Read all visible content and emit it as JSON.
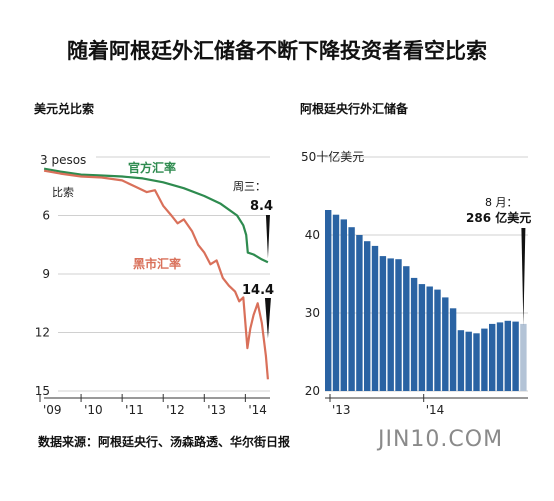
{
  "title": "随着阿根廷外汇储备不断下降投资者看空比索",
  "source": "数据来源：阿根廷央行、汤森路透、华尔街日报",
  "watermark": "JIN10.COM",
  "colors": {
    "official": "#2e8b4f",
    "black": "#d9705a",
    "bar": "#2a63a3",
    "bar_last": "#b3c3d6",
    "grid": "#d0d0d0",
    "text": "#222222"
  },
  "chart_data": [
    {
      "type": "line",
      "title": "美元兑比索",
      "y_unit_label": "3 pesos",
      "y_unit_sub": "比索",
      "ylim": [
        3,
        15
      ],
      "y_inverted": true,
      "y_ticks": [
        6,
        9,
        12,
        15
      ],
      "x_ticks": [
        "'09",
        "'10",
        "'11",
        "'12",
        "'13",
        "'14"
      ],
      "xlim": [
        2009.0,
        2014.6
      ],
      "grid": true,
      "series": [
        {
          "name": "官方汇率",
          "x": [
            2009.1,
            2009.5,
            2010.0,
            2010.5,
            2011.0,
            2011.5,
            2012.0,
            2012.5,
            2013.0,
            2013.4,
            2013.8,
            2013.95,
            2014.02,
            2014.06,
            2014.2,
            2014.4,
            2014.55
          ],
          "y": [
            3.6,
            3.75,
            3.9,
            3.95,
            4.0,
            4.1,
            4.3,
            4.6,
            5.0,
            5.4,
            6.0,
            6.5,
            7.0,
            7.9,
            8.0,
            8.25,
            8.4
          ]
        },
        {
          "name": "黑市汇率",
          "x": [
            2009.1,
            2009.5,
            2010.0,
            2010.5,
            2011.0,
            2011.3,
            2011.6,
            2011.8,
            2012.0,
            2012.2,
            2012.35,
            2012.5,
            2012.7,
            2012.85,
            2013.0,
            2013.15,
            2013.3,
            2013.45,
            2013.6,
            2013.75,
            2013.85,
            2013.95,
            2014.05,
            2014.12,
            2014.2,
            2014.3,
            2014.4,
            2014.5,
            2014.55
          ],
          "y": [
            3.7,
            3.85,
            4.0,
            4.05,
            4.2,
            4.5,
            4.8,
            4.7,
            5.5,
            6.0,
            6.4,
            6.2,
            6.8,
            7.5,
            7.9,
            8.5,
            8.3,
            9.2,
            9.6,
            9.9,
            10.4,
            10.2,
            12.8,
            11.8,
            11.1,
            10.5,
            11.5,
            13.2,
            14.4
          ]
        }
      ],
      "annotations": {
        "official_label": "官方汇率",
        "black_label": "黑市汇率",
        "wednesday": "周三：",
        "official_value": "8.4",
        "black_value": "14.4"
      }
    },
    {
      "type": "bar",
      "title": "阿根廷央行外汇储备",
      "y_unit_label": "50十亿美元",
      "ylim": [
        20,
        50
      ],
      "y_ticks": [
        20,
        30,
        40,
        50
      ],
      "x_ticks": [
        "'13",
        "'14"
      ],
      "grid": true,
      "values": [
        43.2,
        42.6,
        42.0,
        41.0,
        40.0,
        39.2,
        38.6,
        37.3,
        37.0,
        36.9,
        36.0,
        34.5,
        33.7,
        33.4,
        33.0,
        32.0,
        30.6,
        27.8,
        27.6,
        27.4,
        28.0,
        28.6,
        28.8,
        29.0,
        28.9,
        28.6
      ],
      "highlight_last": true,
      "annotation": {
        "month": "8 月：",
        "value": "286 亿美元"
      }
    }
  ]
}
